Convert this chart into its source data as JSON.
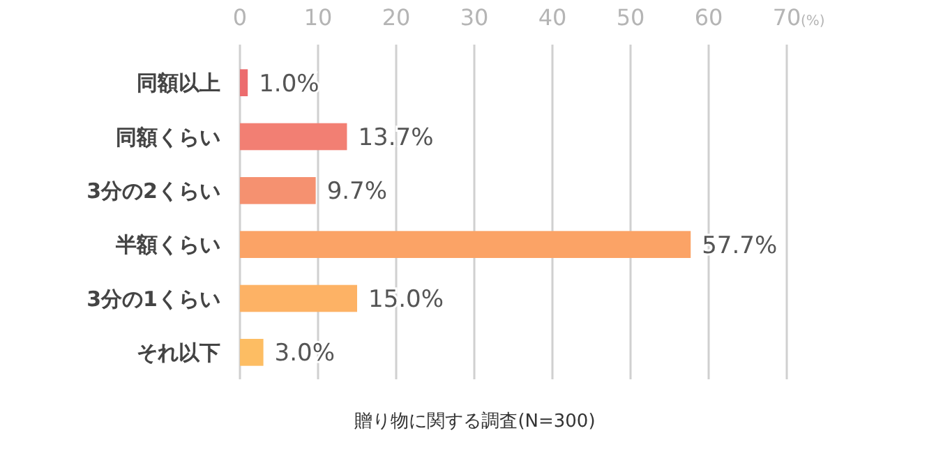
{
  "chart_data": {
    "type": "bar",
    "orientation": "horizontal",
    "xlabel": "(%)",
    "categories": [
      "同額以上",
      "同額くらい",
      "3分の2くらい",
      "半額くらい",
      "3分の1くらい",
      "それ以下"
    ],
    "values": [
      1.0,
      13.7,
      9.7,
      57.7,
      15.0,
      3.0
    ],
    "value_labels": [
      "1.0%",
      "13.7%",
      "9.7%",
      "57.7%",
      "15.0%",
      "3.0%"
    ],
    "colors": [
      "#ec6c6e",
      "#f27f73",
      "#f59170",
      "#fba366",
      "#fdb265",
      "#fdbd63"
    ],
    "xlim": [
      0,
      70
    ],
    "xticks": [
      0,
      10,
      20,
      30,
      40,
      50,
      60,
      70
    ],
    "grid": "x",
    "annotations": [
      "贈り物に関する調査(N=300)"
    ]
  }
}
